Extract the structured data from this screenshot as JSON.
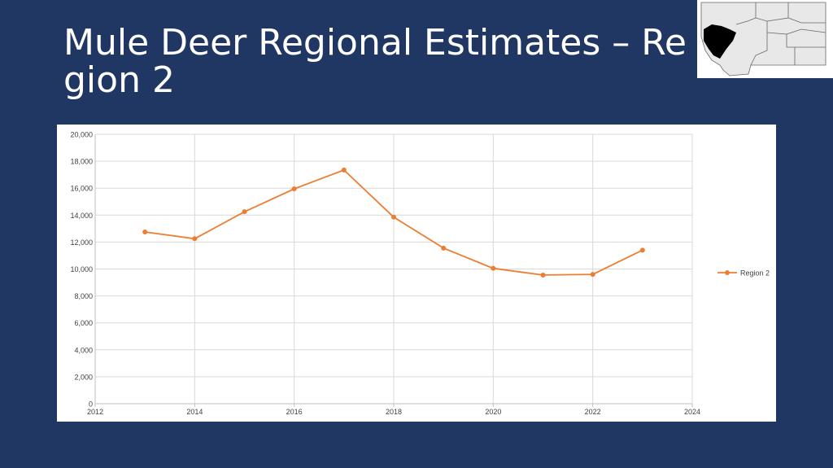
{
  "slide": {
    "title": "Mule Deer Regional Estimates – Region 2"
  },
  "colors": {
    "background": "#213763",
    "series": "#ED7D31",
    "grid": "#D9D9D9",
    "map_land": "#E8E8E8",
    "map_highlight": "#000000"
  },
  "map_inset": {
    "icon": "montana-region-map-icon"
  },
  "chart_data": {
    "type": "scatter",
    "x": [
      2013,
      2014,
      2015,
      2016,
      2017,
      2018,
      2019,
      2020,
      2021,
      2022,
      2023
    ],
    "series": [
      {
        "name": "Region 2",
        "values": [
          12750,
          12250,
          14250,
          15950,
          17350,
          13850,
          11550,
          10050,
          9550,
          9600,
          11400
        ]
      }
    ],
    "xlim": [
      2012,
      2024
    ],
    "ylim": [
      0,
      20000
    ],
    "xticks": [
      "2012",
      "2014",
      "2016",
      "2018",
      "2020",
      "2022",
      "2024"
    ],
    "yticks": [
      "0",
      "2,000",
      "4,000",
      "6,000",
      "8,000",
      "10,000",
      "12,000",
      "14,000",
      "16,000",
      "18,000",
      "20,000"
    ],
    "lines_connected": true,
    "grid": true,
    "legend": "right",
    "title": "",
    "xlabel": "",
    "ylabel": ""
  }
}
